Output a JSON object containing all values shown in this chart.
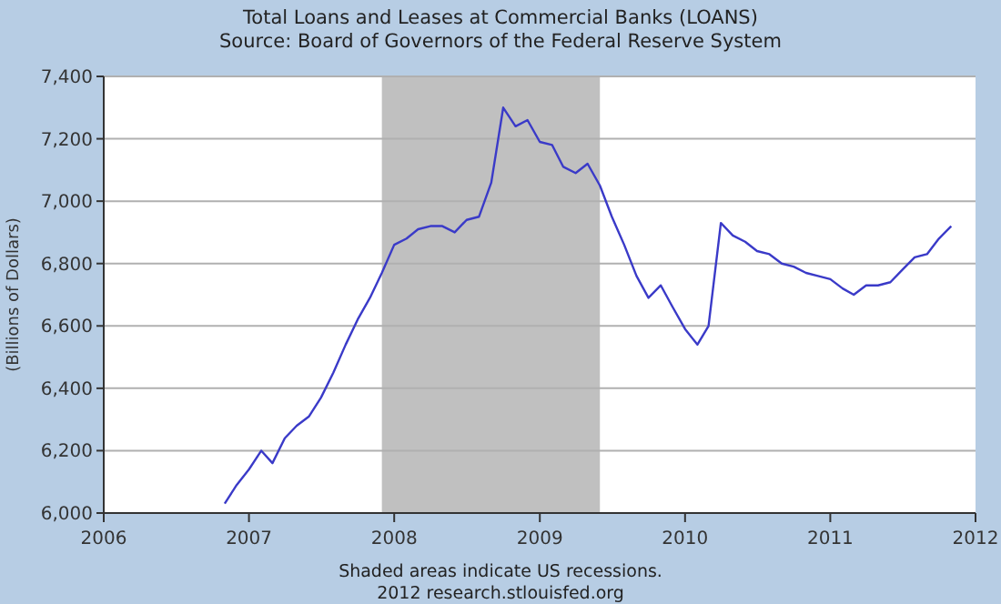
{
  "chart_data": {
    "type": "line",
    "title": "Total Loans and Leases at Commercial Banks (LOANS)",
    "subtitle": "Source: Board of Governors of the Federal Reserve System",
    "ylabel": "(Billions of Dollars)",
    "annotations": [
      "Shaded areas indicate US recessions.",
      "2012 research.stlouisfed.org"
    ],
    "x": [
      "2006-11",
      "2006-12",
      "2007-01",
      "2007-02",
      "2007-03",
      "2007-04",
      "2007-05",
      "2007-06",
      "2007-07",
      "2007-08",
      "2007-09",
      "2007-10",
      "2007-11",
      "2007-12",
      "2008-01",
      "2008-02",
      "2008-03",
      "2008-04",
      "2008-05",
      "2008-06",
      "2008-07",
      "2008-08",
      "2008-09",
      "2008-10",
      "2008-11",
      "2008-12",
      "2009-01",
      "2009-02",
      "2009-03",
      "2009-04",
      "2009-05",
      "2009-06",
      "2009-07",
      "2009-08",
      "2009-09",
      "2009-10",
      "2009-11",
      "2009-12",
      "2010-01",
      "2010-02",
      "2010-03",
      "2010-04",
      "2010-05",
      "2010-06",
      "2010-07",
      "2010-08",
      "2010-09",
      "2010-10",
      "2010-11",
      "2010-12",
      "2011-01",
      "2011-02",
      "2011-03",
      "2011-04",
      "2011-05",
      "2011-06",
      "2011-07",
      "2011-08",
      "2011-09",
      "2011-10",
      "2011-11"
    ],
    "series": [
      {
        "color": "#3a3ac8",
        "values": [
          6030,
          6090,
          6140,
          6200,
          6160,
          6240,
          6280,
          6310,
          6370,
          6450,
          6540,
          6620,
          6690,
          6770,
          6860,
          6880,
          6910,
          6920,
          6920,
          6900,
          6940,
          6950,
          7060,
          7300,
          7240,
          7260,
          7190,
          7180,
          7110,
          7090,
          7120,
          7050,
          6950,
          6860,
          6760,
          6690,
          6730,
          6660,
          6590,
          6540,
          6600,
          6930,
          6890,
          6870,
          6840,
          6830,
          6800,
          6790,
          6770,
          6760,
          6750,
          6720,
          6700,
          6730,
          6730,
          6740,
          6780,
          6820,
          6830,
          6880,
          6920
        ]
      }
    ],
    "xlim": [
      "2006",
      "2012"
    ],
    "xticks": [
      {
        "value": "2006",
        "label": "2006"
      },
      {
        "value": "2007",
        "label": "2007"
      },
      {
        "value": "2008",
        "label": "2008"
      },
      {
        "value": "2009",
        "label": "2009"
      },
      {
        "value": "2010",
        "label": "2010"
      },
      {
        "value": "2011",
        "label": "2011"
      },
      {
        "value": "2012",
        "label": "2012"
      }
    ],
    "ylim": [
      6000,
      7400
    ],
    "yticks": [
      {
        "value": 6000,
        "label": "6,000"
      },
      {
        "value": 6200,
        "label": "6,200"
      },
      {
        "value": 6400,
        "label": "6,400"
      },
      {
        "value": 6600,
        "label": "6,600"
      },
      {
        "value": 6800,
        "label": "6,800"
      },
      {
        "value": 7000,
        "label": "7,000"
      },
      {
        "value": 7200,
        "label": "7,200"
      },
      {
        "value": 7400,
        "label": "7,400"
      }
    ],
    "bands": [
      {
        "axis": "x",
        "from": "2007-12",
        "to": "2009-06",
        "color": "#c0c0c0"
      }
    ],
    "grid": "y",
    "marker": "none",
    "line_style": "solid"
  }
}
